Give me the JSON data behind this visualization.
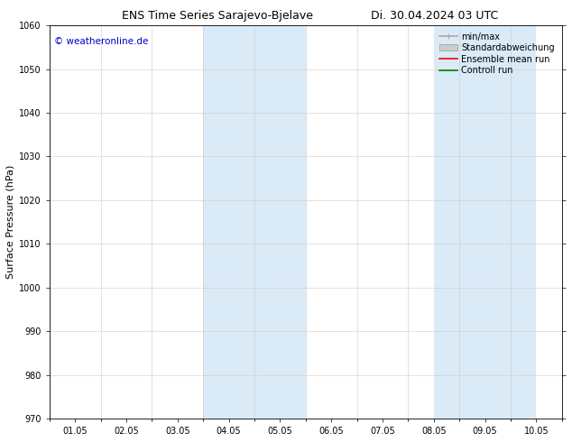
{
  "title": "ENS Time Series Sarajevo-Bjelave",
  "title_right": "Di. 30.04.2024 03 UTC",
  "ylabel": "Surface Pressure (hPa)",
  "ylim": [
    970,
    1060
  ],
  "yticks": [
    970,
    980,
    990,
    1000,
    1010,
    1020,
    1030,
    1040,
    1050,
    1060
  ],
  "xlabel": "",
  "xtick_labels": [
    "01.05",
    "02.05",
    "03.05",
    "04.05",
    "05.05",
    "06.05",
    "07.05",
    "08.05",
    "09.05",
    "10.05"
  ],
  "xtick_positions": [
    0.5,
    1.5,
    2.5,
    3.5,
    4.5,
    5.5,
    6.5,
    7.5,
    8.5,
    9.5
  ],
  "xlim": [
    0,
    10
  ],
  "shaded_regions": [
    {
      "x_start": 3.0,
      "x_end": 5.0,
      "color": "#daeaf7"
    },
    {
      "x_start": 7.5,
      "x_end": 9.5,
      "color": "#daeaf7"
    }
  ],
  "watermark_text": "© weatheronline.de",
  "watermark_color": "#0000cc",
  "legend_items": [
    {
      "label": "min/max",
      "color": "#aaaaaa",
      "linestyle": "-",
      "linewidth": 1.2
    },
    {
      "label": "Standardabweichung",
      "color": "#cccccc",
      "linestyle": "-",
      "linewidth": 5
    },
    {
      "label": "Ensemble mean run",
      "color": "red",
      "linestyle": "-",
      "linewidth": 1.2
    },
    {
      "label": "Controll run",
      "color": "green",
      "linestyle": "-",
      "linewidth": 1.2
    }
  ],
  "background_color": "#ffffff",
  "grid_color": "#cccccc",
  "title_fontsize": 9,
  "axis_fontsize": 8,
  "tick_fontsize": 7,
  "watermark_fontsize": 7.5,
  "legend_fontsize": 7
}
